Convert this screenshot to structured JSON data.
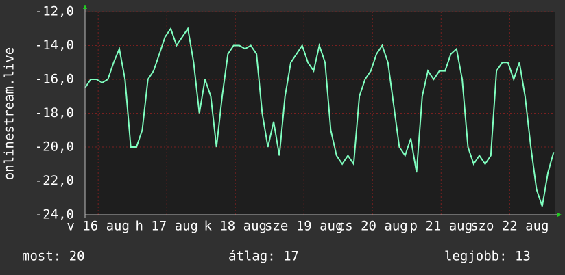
{
  "chart_data": {
    "type": "line",
    "y_label": "onlinestream.live",
    "x": [
      0,
      2,
      4,
      6,
      8,
      10,
      12,
      14,
      16,
      18,
      20,
      22,
      24,
      26,
      28,
      30,
      32,
      34,
      36,
      38,
      40,
      42,
      44,
      46,
      48,
      50,
      52,
      54,
      56,
      58,
      60,
      62,
      64,
      66,
      68,
      70,
      72,
      74,
      76,
      78,
      80,
      82,
      84,
      86,
      88,
      90,
      92,
      94,
      96,
      98,
      100,
      102,
      104,
      106,
      108,
      110,
      112,
      114,
      116,
      118,
      120,
      122,
      124,
      126,
      128,
      130,
      132,
      134,
      136,
      138,
      140,
      142,
      144,
      146,
      148,
      150,
      152,
      154,
      156,
      158,
      160,
      162,
      164
    ],
    "series": [
      {
        "color": "#80ffc0",
        "values": [
          -16.5,
          -16,
          -16,
          -16.2,
          -16,
          -15,
          -14.2,
          -16,
          -20,
          -20,
          -19,
          -16,
          -15.5,
          -14.5,
          -13.5,
          -13,
          -14,
          -13.5,
          -13,
          -15,
          -18,
          -16,
          -17,
          -20,
          -17,
          -14.5,
          -14,
          -14,
          -14.2,
          -14,
          -14.5,
          -18,
          -20,
          -18.5,
          -20.5,
          -17,
          -15,
          -14.5,
          -14,
          -15,
          -15.5,
          -14,
          -15,
          -19,
          -20.5,
          -21,
          -20.5,
          -21,
          -17,
          -16,
          -15.5,
          -14.5,
          -14,
          -15,
          -17.5,
          -20,
          -20.5,
          -19.5,
          -21.5,
          -17,
          -15.5,
          -16,
          -15.5,
          -15.5,
          -14.5,
          -14.2,
          -16,
          -20,
          -21,
          -20.5,
          -21,
          -20.5,
          -15.5,
          -15,
          -15,
          -16,
          -15,
          -17,
          -20,
          -22.5,
          -23.5,
          -21.5,
          -20.3
        ]
      }
    ],
    "xlim": [
      0,
      164.6
    ],
    "xticks": [
      {
        "value": 4.6,
        "label": "v 16 aug"
      },
      {
        "value": 28.6,
        "label": "h 17 aug"
      },
      {
        "value": 52.6,
        "label": "k 18 aug"
      },
      {
        "value": 76.6,
        "label": "sze 19 aug"
      },
      {
        "value": 100.6,
        "label": "cs 20 aug"
      },
      {
        "value": 124.6,
        "label": "p 21 aug"
      },
      {
        "value": 148.6,
        "label": "szo 22 aug"
      }
    ],
    "ylim": [
      -24,
      -12
    ],
    "yticks": [
      {
        "value": -24,
        "label": "-24,0"
      },
      {
        "value": -22,
        "label": "-22,0"
      },
      {
        "value": -20,
        "label": "-20,0"
      },
      {
        "value": -18,
        "label": "-18,0"
      },
      {
        "value": -16,
        "label": "-16,0"
      },
      {
        "value": -14,
        "label": "-14,0"
      },
      {
        "value": -12,
        "label": "-12,0"
      }
    ],
    "grid": true,
    "stats": [
      "most: 20",
      "átlag: 17",
      "legjobb: 13"
    ]
  }
}
